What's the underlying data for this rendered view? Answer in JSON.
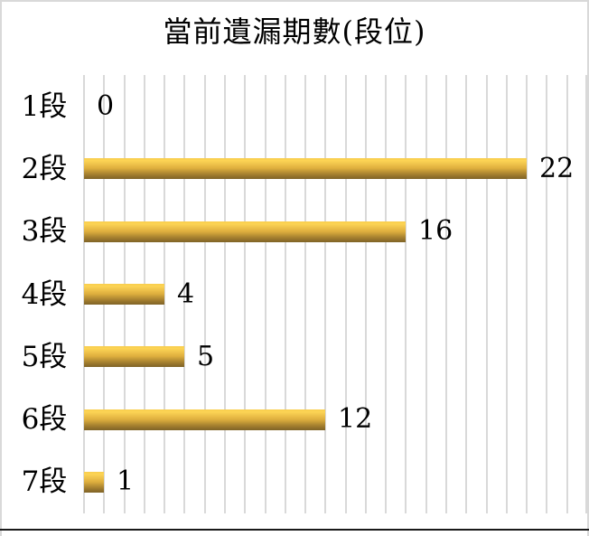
{
  "chart_data": {
    "type": "bar",
    "orientation": "horizontal",
    "title": "當前遺漏期數(段位)",
    "categories": [
      "1段",
      "2段",
      "3段",
      "4段",
      "5段",
      "6段",
      "7段"
    ],
    "values": [
      0,
      22,
      16,
      4,
      5,
      12,
      1
    ],
    "xlim": [
      0,
      25
    ],
    "gridline_step": 1,
    "grid_on": true,
    "legend": "none",
    "colors": {
      "bar_top": "#F8CD4D",
      "bar_bright": "#FCD455",
      "bar_mid": "#DFAF3E",
      "bar_dark": "#A07C2E",
      "bar_bottom": "#7F6327",
      "gridline": "#D9D9D9",
      "frame_edge": "#D9D9D9",
      "bottom_rule": "#1A1A1A",
      "text": "#000000"
    }
  }
}
